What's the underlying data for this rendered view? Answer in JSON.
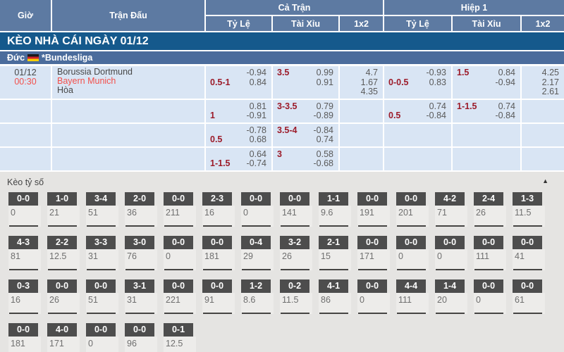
{
  "header": {
    "col_time": "Giờ",
    "col_match": "Trận Đấu",
    "group_full": "Cả Trận",
    "group_half": "Hiệp 1",
    "sub_handicap": "Tỷ Lệ",
    "sub_overunder": "Tài Xỉu",
    "sub_1x2": "1x2"
  },
  "title_bar": "KÈO NHÀ CÁI NGÀY 01/12",
  "league_bar": {
    "country": "Đức",
    "flag_icon": "germany-flag",
    "league": "*Bundesliga"
  },
  "icons": {
    "chevron_up": "▲"
  },
  "odds_rows": [
    {
      "time": [
        {
          "text": "01/12",
          "red": false
        },
        {
          "text": "00:30",
          "red": true
        }
      ],
      "teams": [
        {
          "text": "Borussia Dortmund",
          "red": false
        },
        {
          "text": "Bayern Munich",
          "red": true
        },
        {
          "text": "Hòa",
          "red": false
        }
      ],
      "ct_tyle": [
        {
          "hc": "",
          "odd": "-0.94"
        },
        {
          "hc": "0.5-1",
          "odd": "0.84"
        }
      ],
      "ct_taixiu": [
        {
          "hc": "3.5",
          "odd": "0.99"
        },
        {
          "hc": "",
          "odd": "0.91"
        }
      ],
      "ct_1x2": [
        {
          "hc": "",
          "odd": "4.7"
        },
        {
          "hc": "",
          "odd": "1.67"
        },
        {
          "hc": "",
          "odd": "4.35"
        }
      ],
      "h1_tyle": [
        {
          "hc": "",
          "odd": "-0.93"
        },
        {
          "hc": "0-0.5",
          "odd": "0.83"
        }
      ],
      "h1_taixiu": [
        {
          "hc": "1.5",
          "odd": "0.84"
        },
        {
          "hc": "",
          "odd": "-0.94"
        }
      ],
      "h1_1x2": [
        {
          "hc": "",
          "odd": "4.25"
        },
        {
          "hc": "",
          "odd": "2.17"
        },
        {
          "hc": "",
          "odd": "2.61"
        }
      ]
    },
    {
      "ct_tyle": [
        {
          "hc": "",
          "odd": "0.81"
        },
        {
          "hc": "1",
          "odd": "-0.91"
        }
      ],
      "ct_taixiu": [
        {
          "hc": "3-3.5",
          "odd": "0.79"
        },
        {
          "hc": "",
          "odd": "-0.89"
        }
      ],
      "ct_1x2": [],
      "h1_tyle": [
        {
          "hc": "",
          "odd": "0.74"
        },
        {
          "hc": "0.5",
          "odd": "-0.84"
        }
      ],
      "h1_taixiu": [
        {
          "hc": "1-1.5",
          "odd": "0.74"
        },
        {
          "hc": "",
          "odd": "-0.84"
        }
      ],
      "h1_1x2": []
    },
    {
      "ct_tyle": [
        {
          "hc": "",
          "odd": "-0.78"
        },
        {
          "hc": "0.5",
          "odd": "0.68"
        }
      ],
      "ct_taixiu": [
        {
          "hc": "3.5-4",
          "odd": "-0.84"
        },
        {
          "hc": "",
          "odd": "0.74"
        }
      ],
      "ct_1x2": [],
      "h1_tyle": [],
      "h1_taixiu": [],
      "h1_1x2": []
    },
    {
      "ct_tyle": [
        {
          "hc": "",
          "odd": "0.64"
        },
        {
          "hc": "1-1.5",
          "odd": "-0.74"
        }
      ],
      "ct_taixiu": [
        {
          "hc": "3",
          "odd": "0.58"
        },
        {
          "hc": "",
          "odd": "-0.68"
        }
      ],
      "ct_1x2": [],
      "h1_tyle": [],
      "h1_taixiu": [],
      "h1_1x2": []
    }
  ],
  "score_section": {
    "title": "Kèo tỷ số",
    "rows": [
      [
        {
          "score": "0-0",
          "odd": "0"
        },
        {
          "score": "1-0",
          "odd": "21"
        },
        {
          "score": "3-4",
          "odd": "51"
        },
        {
          "score": "2-0",
          "odd": "36"
        },
        {
          "score": "0-0",
          "odd": "211"
        },
        {
          "score": "2-3",
          "odd": "16"
        },
        {
          "score": "0-0",
          "odd": "0"
        },
        {
          "score": "0-0",
          "odd": "141"
        },
        {
          "score": "1-1",
          "odd": "9.6"
        },
        {
          "score": "0-0",
          "odd": "191"
        },
        {
          "score": "0-0",
          "odd": "201"
        },
        {
          "score": "4-2",
          "odd": "71"
        },
        {
          "score": "2-4",
          "odd": "26"
        },
        {
          "score": "1-3",
          "odd": "11.5"
        }
      ],
      [
        {
          "score": "4-3",
          "odd": "81"
        },
        {
          "score": "2-2",
          "odd": "12.5"
        },
        {
          "score": "3-3",
          "odd": "31"
        },
        {
          "score": "3-0",
          "odd": "76"
        },
        {
          "score": "0-0",
          "odd": "0"
        },
        {
          "score": "0-0",
          "odd": "181"
        },
        {
          "score": "0-4",
          "odd": "29"
        },
        {
          "score": "3-2",
          "odd": "26"
        },
        {
          "score": "2-1",
          "odd": "15"
        },
        {
          "score": "0-0",
          "odd": "171"
        },
        {
          "score": "0-0",
          "odd": "0"
        },
        {
          "score": "0-0",
          "odd": "0"
        },
        {
          "score": "0-0",
          "odd": "111"
        },
        {
          "score": "0-0",
          "odd": "41"
        }
      ],
      [
        {
          "score": "0-3",
          "odd": "16"
        },
        {
          "score": "0-0",
          "odd": "26"
        },
        {
          "score": "0-0",
          "odd": "51"
        },
        {
          "score": "3-1",
          "odd": "31"
        },
        {
          "score": "0-0",
          "odd": "221"
        },
        {
          "score": "0-0",
          "odd": "91"
        },
        {
          "score": "1-2",
          "odd": "8.6"
        },
        {
          "score": "0-2",
          "odd": "11.5"
        },
        {
          "score": "4-1",
          "odd": "86"
        },
        {
          "score": "0-0",
          "odd": "0"
        },
        {
          "score": "4-4",
          "odd": "111"
        },
        {
          "score": "1-4",
          "odd": "20"
        },
        {
          "score": "0-0",
          "odd": "0"
        },
        {
          "score": "0-0",
          "odd": "61"
        }
      ],
      [
        {
          "score": "0-0",
          "odd": "181"
        },
        {
          "score": "4-0",
          "odd": "171"
        },
        {
          "score": "0-0",
          "odd": "0"
        },
        {
          "score": "0-0",
          "odd": "96"
        },
        {
          "score": "0-1",
          "odd": "12.5"
        }
      ]
    ]
  },
  "colors": {
    "header_blue": "#5d7aa2",
    "title_bar_blue": "#15598c",
    "league_bar_blue": "#4b6c9c",
    "row_bg_blue": "#d9e5f4",
    "handicap_red": "#9c1b29",
    "highlight_red": "#f2504b",
    "score_header_gray": "#4d4d4d",
    "section_bg_gray": "#e5e4e2"
  }
}
